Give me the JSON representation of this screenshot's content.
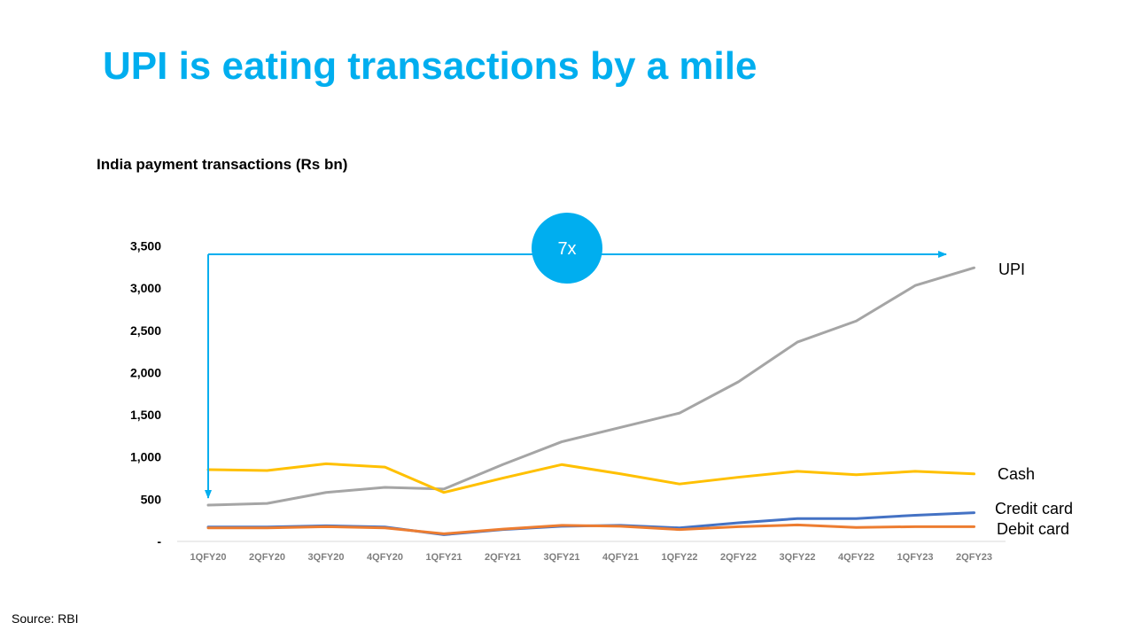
{
  "slide": {
    "title": "UPI is eating transactions by a mile",
    "source": "Source: RBI"
  },
  "chart_data": {
    "type": "line",
    "title": "India payment transactions (Rs bn)",
    "xlabel": "",
    "ylabel": "",
    "categories": [
      "1QFY20",
      "2QFY20",
      "3QFY20",
      "4QFY20",
      "1QFY21",
      "2QFY21",
      "3QFY21",
      "4QFY21",
      "1QFY22",
      "2QFY22",
      "3QFY22",
      "4QFY22",
      "1QFY23",
      "2QFY23"
    ],
    "ylim": [
      0,
      3500
    ],
    "yticks": [
      0,
      500,
      1000,
      1500,
      2000,
      2500,
      3000,
      3500
    ],
    "ytick_labels": [
      "-",
      "500",
      "1,000",
      "1,500",
      "2,000",
      "2,500",
      "3,000",
      "3,500"
    ],
    "grid": false,
    "legend": "inline-right",
    "series": [
      {
        "name": "UPI",
        "color": "#A5A5A5",
        "values": [
          430,
          450,
          580,
          640,
          620,
          910,
          1180,
          1350,
          1520,
          1890,
          2360,
          2610,
          3030,
          3240
        ]
      },
      {
        "name": "Cash",
        "color": "#FFC000",
        "values": [
          850,
          840,
          920,
          880,
          580,
          750,
          910,
          800,
          680,
          760,
          830,
          790,
          830,
          800
        ]
      },
      {
        "name": "Credit card",
        "color": "#4472C4",
        "values": [
          170,
          170,
          185,
          170,
          80,
          140,
          180,
          190,
          160,
          220,
          270,
          270,
          310,
          340
        ]
      },
      {
        "name": "Debit card",
        "color": "#ED7D31",
        "values": [
          160,
          160,
          175,
          160,
          90,
          145,
          190,
          180,
          140,
          175,
          195,
          165,
          175,
          175
        ]
      }
    ],
    "annotation": {
      "label": "7x",
      "color": "#00AEEF",
      "text_color": "#ffffff",
      "from_category": "1QFY20",
      "to_category": "2QFY23",
      "y_value": 3400
    }
  }
}
